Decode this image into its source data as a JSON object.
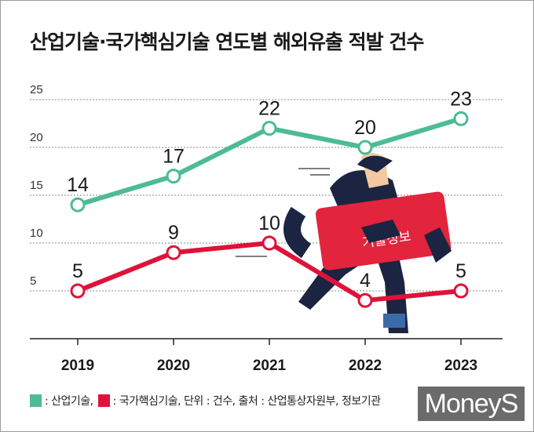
{
  "title": "산업기술·국가핵심기술 연도별 해외유출 적발 건수",
  "chart_data": {
    "type": "line",
    "title": "산업기술·국가핵심기술 연도별 해외유출 적발 건수",
    "categories": [
      "2019",
      "2020",
      "2021",
      "2022",
      "2023"
    ],
    "series": [
      {
        "name": "산업기술",
        "values": [
          14,
          17,
          22,
          20,
          23
        ],
        "color": "#4dbb94"
      },
      {
        "name": "국가핵심기술",
        "values": [
          5,
          9,
          10,
          4,
          5
        ],
        "color": "#e0123a"
      }
    ],
    "yticks": [
      5,
      10,
      15,
      20,
      25
    ],
    "ylim": [
      0,
      25
    ],
    "grid": true,
    "legend_position": "bottom-left"
  },
  "legend": {
    "item1": ": 산업기술,",
    "item2": ": 국가핵심기술, 단위 : 건수, 출처 : 산업통상자원부, 정보기관"
  },
  "illustration": {
    "card_text": "기술정보"
  },
  "logo": "MoneyS"
}
